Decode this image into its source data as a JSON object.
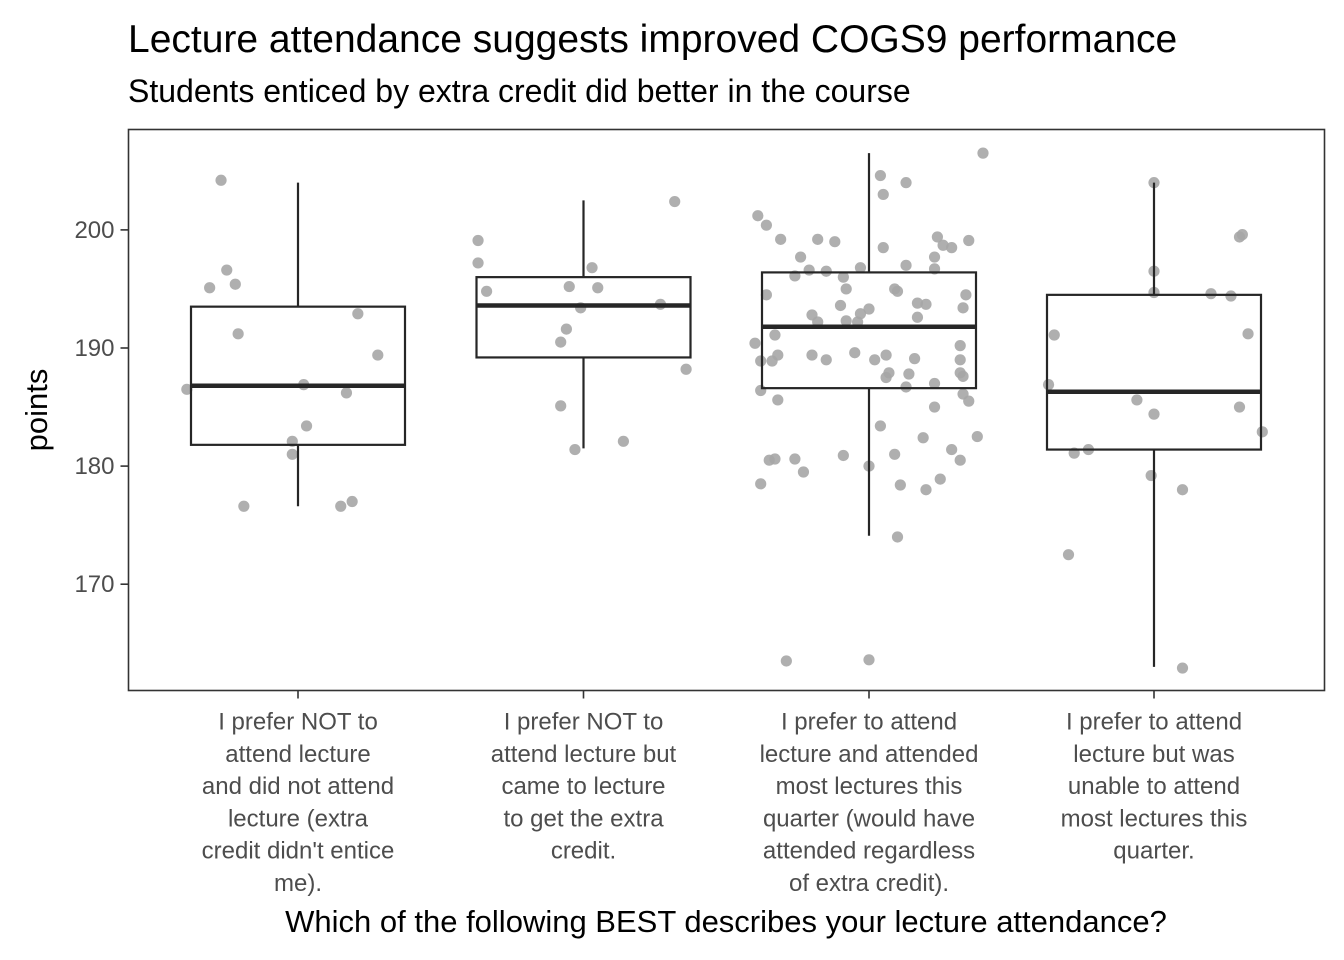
{
  "chart_data": {
    "type": "boxplot",
    "title": "Lecture attendance suggests improved COGS9 performance",
    "subtitle": "Students enticed by extra credit did better in the course",
    "xlabel": "Which of the following BEST describes your lecture attendance?",
    "ylabel": "points",
    "ylim": [
      161.0,
      208.5
    ],
    "yticks": [
      170,
      180,
      190,
      200
    ],
    "grid": false,
    "colors": {
      "points": "#a6a6a6",
      "box": "#262626",
      "panel_border": "#333333",
      "tick_text": "#4d4d4d"
    },
    "categories": [
      {
        "label_lines": [
          "I prefer NOT to",
          "attend lecture",
          "and did not attend",
          "lecture (extra",
          "credit didn't entice",
          "me)."
        ]
      },
      {
        "label_lines": [
          "I prefer NOT to",
          "attend lecture but",
          "came to lecture",
          "to get the extra",
          "credit."
        ]
      },
      {
        "label_lines": [
          "I prefer to attend",
          "lecture and attended",
          "most lectures this",
          "quarter (would have",
          "attended regardless",
          "of extra credit)."
        ]
      },
      {
        "label_lines": [
          "I prefer to attend",
          "lecture but was",
          "unable to attend",
          "most lectures this",
          "quarter."
        ]
      }
    ],
    "boxes": [
      {
        "lower_whisker": 176.6,
        "q1": 181.8,
        "median": 186.8,
        "q3": 193.5,
        "upper_whisker": 204.0
      },
      {
        "lower_whisker": 181.5,
        "q1": 189.2,
        "median": 193.6,
        "q3": 196.0,
        "upper_whisker": 202.5
      },
      {
        "lower_whisker": 174.1,
        "q1": 186.6,
        "median": 191.8,
        "q3": 196.4,
        "upper_whisker": 206.5
      },
      {
        "lower_whisker": 163.0,
        "q1": 181.4,
        "median": 186.3,
        "q3": 194.5,
        "upper_whisker": 204.0
      }
    ],
    "points": [
      [
        {
          "jitter": -0.27,
          "y": 204.2
        },
        {
          "jitter": -0.25,
          "y": 196.6
        },
        {
          "jitter": -0.31,
          "y": 195.1
        },
        {
          "jitter": -0.22,
          "y": 195.4
        },
        {
          "jitter": -0.21,
          "y": 191.2
        },
        {
          "jitter": 0.21,
          "y": 192.9
        },
        {
          "jitter": 0.28,
          "y": 189.4
        },
        {
          "jitter": -0.39,
          "y": 186.5
        },
        {
          "jitter": 0.02,
          "y": 186.9
        },
        {
          "jitter": 0.17,
          "y": 186.2
        },
        {
          "jitter": 0.03,
          "y": 183.4
        },
        {
          "jitter": -0.02,
          "y": 182.1
        },
        {
          "jitter": -0.02,
          "y": 181.0
        },
        {
          "jitter": -0.19,
          "y": 176.6
        },
        {
          "jitter": 0.15,
          "y": 176.6
        },
        {
          "jitter": 0.19,
          "y": 177.0
        }
      ],
      [
        {
          "jitter": -0.37,
          "y": 199.1
        },
        {
          "jitter": -0.37,
          "y": 197.2
        },
        {
          "jitter": -0.34,
          "y": 194.8
        },
        {
          "jitter": 0.03,
          "y": 196.8
        },
        {
          "jitter": -0.05,
          "y": 195.2
        },
        {
          "jitter": -0.01,
          "y": 193.4
        },
        {
          "jitter": 0.05,
          "y": 195.1
        },
        {
          "jitter": 0.27,
          "y": 193.7
        },
        {
          "jitter": 0.32,
          "y": 202.4
        },
        {
          "jitter": 0.36,
          "y": 188.2
        },
        {
          "jitter": -0.06,
          "y": 191.6
        },
        {
          "jitter": -0.08,
          "y": 190.5
        },
        {
          "jitter": -0.08,
          "y": 185.1
        },
        {
          "jitter": -0.03,
          "y": 181.4
        },
        {
          "jitter": 0.14,
          "y": 182.1
        }
      ],
      [
        {
          "jitter": -0.39,
          "y": 201.2
        },
        {
          "jitter": -0.36,
          "y": 200.4
        },
        {
          "jitter": -0.31,
          "y": 199.2
        },
        {
          "jitter": -0.18,
          "y": 199.2
        },
        {
          "jitter": -0.12,
          "y": 199.0
        },
        {
          "jitter": -0.24,
          "y": 197.7
        },
        {
          "jitter": -0.21,
          "y": 196.6
        },
        {
          "jitter": -0.26,
          "y": 196.1
        },
        {
          "jitter": -0.15,
          "y": 196.5
        },
        {
          "jitter": -0.09,
          "y": 196.0
        },
        {
          "jitter": -0.03,
          "y": 196.8
        },
        {
          "jitter": -0.08,
          "y": 195.0
        },
        {
          "jitter": -0.36,
          "y": 194.5
        },
        {
          "jitter": -0.1,
          "y": 193.6
        },
        {
          "jitter": -0.2,
          "y": 192.8
        },
        {
          "jitter": -0.18,
          "y": 192.2
        },
        {
          "jitter": -0.08,
          "y": 192.3
        },
        {
          "jitter": -0.04,
          "y": 192.2
        },
        {
          "jitter": 0.04,
          "y": 204.6
        },
        {
          "jitter": 0.13,
          "y": 204.0
        },
        {
          "jitter": 0.05,
          "y": 203.0
        },
        {
          "jitter": 0.05,
          "y": 198.5
        },
        {
          "jitter": 0.13,
          "y": 197.0
        },
        {
          "jitter": 0.09,
          "y": 195.0
        },
        {
          "jitter": 0.1,
          "y": 194.8
        },
        {
          "jitter": 0.0,
          "y": 193.3
        },
        {
          "jitter": -0.03,
          "y": 192.9
        },
        {
          "jitter": 0.17,
          "y": 193.8
        },
        {
          "jitter": 0.2,
          "y": 193.7
        },
        {
          "jitter": 0.17,
          "y": 192.6
        },
        {
          "jitter": 0.24,
          "y": 199.4
        },
        {
          "jitter": 0.26,
          "y": 198.7
        },
        {
          "jitter": 0.29,
          "y": 198.5
        },
        {
          "jitter": 0.35,
          "y": 199.1
        },
        {
          "jitter": 0.23,
          "y": 197.7
        },
        {
          "jitter": 0.23,
          "y": 196.7
        },
        {
          "jitter": 0.34,
          "y": 194.5
        },
        {
          "jitter": 0.33,
          "y": 193.4
        },
        {
          "jitter": -0.4,
          "y": 190.4
        },
        {
          "jitter": -0.38,
          "y": 188.9
        },
        {
          "jitter": -0.34,
          "y": 188.9
        },
        {
          "jitter": -0.32,
          "y": 189.4
        },
        {
          "jitter": -0.33,
          "y": 191.1
        },
        {
          "jitter": -0.2,
          "y": 189.4
        },
        {
          "jitter": -0.15,
          "y": 189.0
        },
        {
          "jitter": -0.05,
          "y": 189.6
        },
        {
          "jitter": 0.02,
          "y": 189.0
        },
        {
          "jitter": 0.06,
          "y": 189.4
        },
        {
          "jitter": 0.16,
          "y": 189.1
        },
        {
          "jitter": 0.32,
          "y": 190.2
        },
        {
          "jitter": 0.32,
          "y": 189.0
        },
        {
          "jitter": 0.32,
          "y": 187.9
        },
        {
          "jitter": 0.33,
          "y": 187.6
        },
        {
          "jitter": 0.06,
          "y": 187.5
        },
        {
          "jitter": 0.07,
          "y": 187.9
        },
        {
          "jitter": 0.14,
          "y": 187.8
        },
        {
          "jitter": 0.13,
          "y": 186.7
        },
        {
          "jitter": 0.23,
          "y": 187.0
        },
        {
          "jitter": 0.33,
          "y": 186.1
        },
        {
          "jitter": 0.35,
          "y": 185.5
        },
        {
          "jitter": -0.38,
          "y": 186.4
        },
        {
          "jitter": -0.32,
          "y": 185.6
        },
        {
          "jitter": 0.23,
          "y": 185.0
        },
        {
          "jitter": -0.09,
          "y": 180.9
        },
        {
          "jitter": -0.35,
          "y": 180.5
        },
        {
          "jitter": -0.33,
          "y": 180.6
        },
        {
          "jitter": -0.26,
          "y": 180.6
        },
        {
          "jitter": -0.23,
          "y": 179.5
        },
        {
          "jitter": -0.38,
          "y": 178.5
        },
        {
          "jitter": 0.04,
          "y": 183.4
        },
        {
          "jitter": 0.09,
          "y": 181.0
        },
        {
          "jitter": 0.19,
          "y": 182.4
        },
        {
          "jitter": 0.29,
          "y": 181.4
        },
        {
          "jitter": 0.38,
          "y": 182.5
        },
        {
          "jitter": 0.32,
          "y": 180.5
        },
        {
          "jitter": 0.0,
          "y": 180.0
        },
        {
          "jitter": 0.11,
          "y": 178.4
        },
        {
          "jitter": 0.2,
          "y": 178.0
        },
        {
          "jitter": 0.25,
          "y": 178.9
        },
        {
          "jitter": 0.1,
          "y": 174.0
        },
        {
          "jitter": -0.29,
          "y": 163.5
        },
        {
          "jitter": 0.0,
          "y": 163.6
        },
        {
          "jitter": 0.4,
          "y": 206.5
        }
      ],
      [
        {
          "jitter": 0.0,
          "y": 204.0
        },
        {
          "jitter": 0.0,
          "y": 196.5
        },
        {
          "jitter": 0.0,
          "y": 194.7
        },
        {
          "jitter": 0.2,
          "y": 194.6
        },
        {
          "jitter": 0.27,
          "y": 194.4
        },
        {
          "jitter": 0.3,
          "y": 199.4
        },
        {
          "jitter": 0.31,
          "y": 199.6
        },
        {
          "jitter": 0.33,
          "y": 191.2
        },
        {
          "jitter": -0.35,
          "y": 191.1
        },
        {
          "jitter": -0.37,
          "y": 186.9
        },
        {
          "jitter": -0.06,
          "y": 185.6
        },
        {
          "jitter": 0.0,
          "y": 184.4
        },
        {
          "jitter": 0.3,
          "y": 185.0
        },
        {
          "jitter": 0.38,
          "y": 182.9
        },
        {
          "jitter": -0.28,
          "y": 181.1
        },
        {
          "jitter": -0.23,
          "y": 181.4
        },
        {
          "jitter": -0.01,
          "y": 179.2
        },
        {
          "jitter": 0.1,
          "y": 178.0
        },
        {
          "jitter": -0.3,
          "y": 172.5
        },
        {
          "jitter": 0.1,
          "y": 162.9
        }
      ]
    ]
  }
}
